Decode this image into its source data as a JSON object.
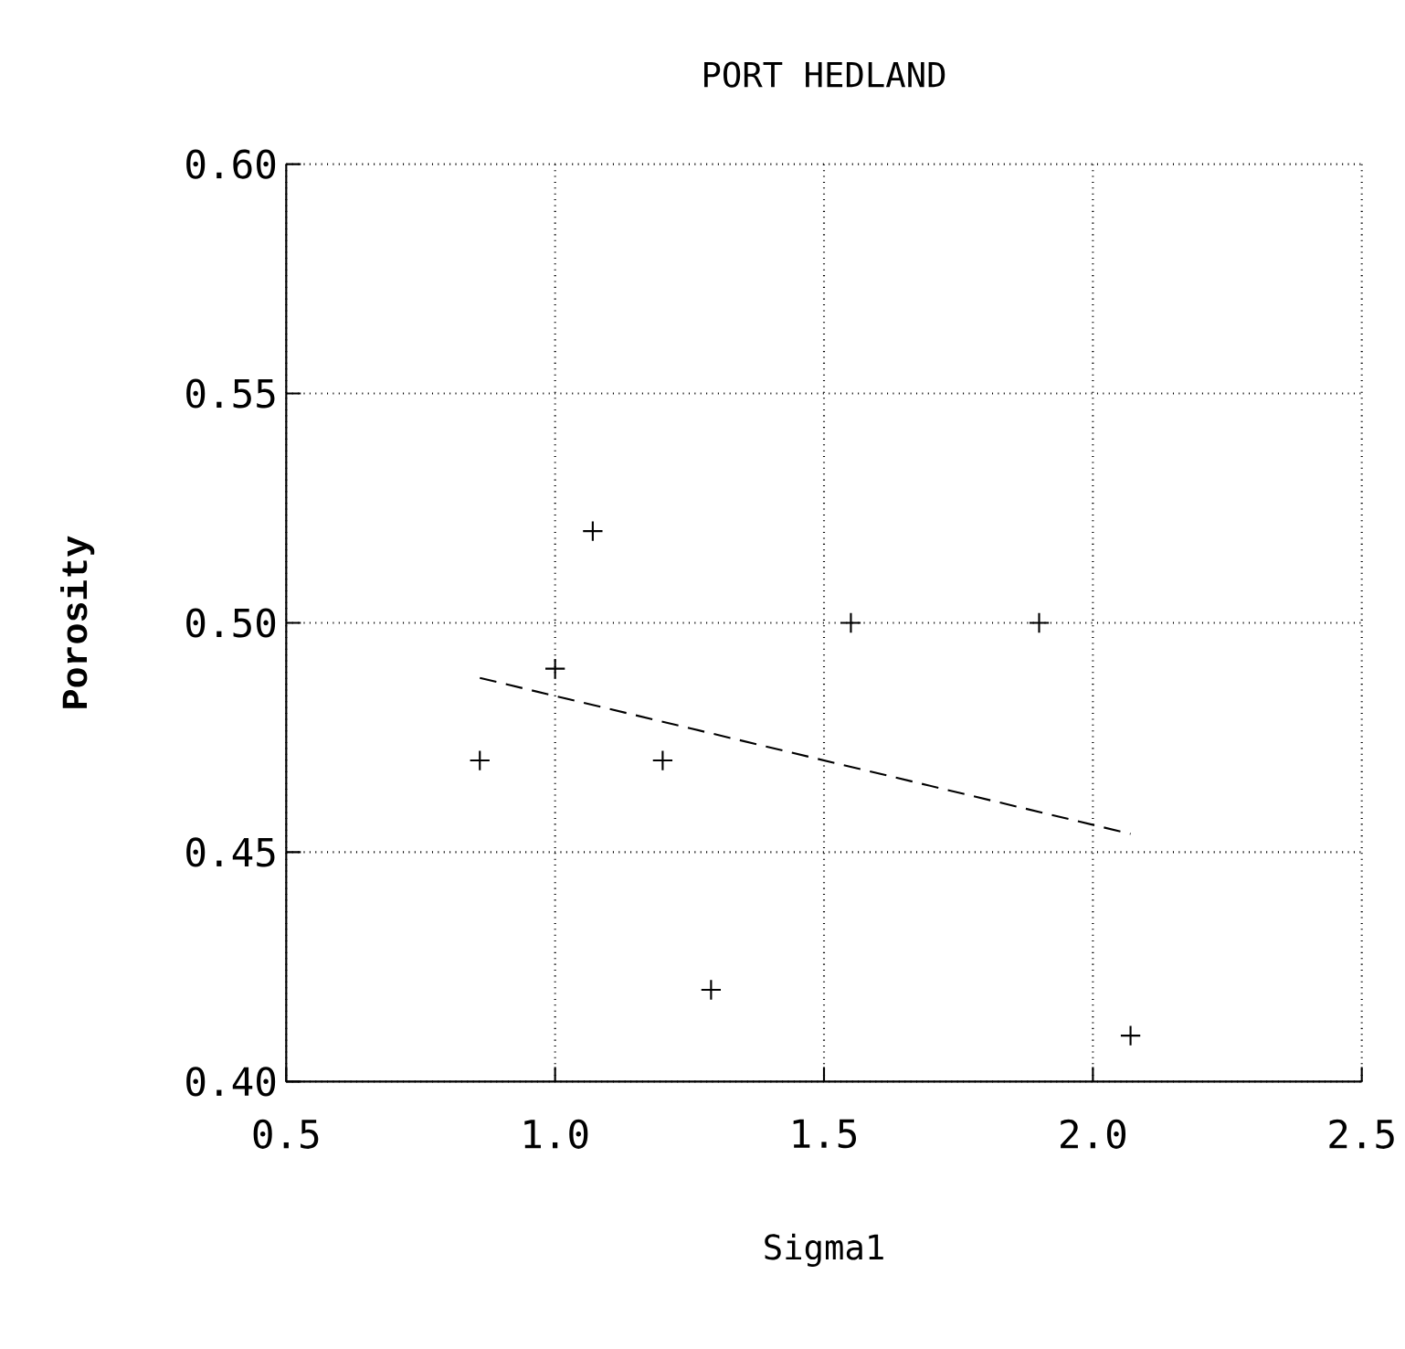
{
  "chart_data": {
    "type": "scatter",
    "title": "PORT HEDLAND",
    "xlabel": "Sigma1",
    "ylabel": "Porosity",
    "series": [
      {
        "color": "#000000",
        "marker": "cross",
        "x": [
          0.86,
          1.0,
          1.07,
          1.2,
          1.29,
          1.55,
          1.9,
          2.07
        ],
        "values": [
          0.47,
          0.49,
          0.52,
          0.47,
          0.42,
          0.5,
          0.5,
          0.41
        ]
      },
      {
        "type": "line",
        "color": "#000000",
        "line_style": "dashed",
        "marker": "none",
        "x": [
          0.86,
          2.07
        ],
        "values": [
          0.488,
          0.454
        ]
      }
    ],
    "xlim": [
      0.5,
      2.5
    ],
    "ylim": [
      0.4,
      0.6
    ],
    "xticks": [
      0.5,
      {
        "value": 1,
        "label": "1.0"
      },
      1.5,
      {
        "value": 2,
        "label": "2.0"
      },
      2.5
    ],
    "yticks": [
      {
        "value": 0.4,
        "label": "0.40"
      },
      0.45,
      {
        "value": 0.5,
        "label": "0.50"
      },
      0.55,
      {
        "value": 0.6,
        "label": "0.60"
      }
    ],
    "grid": true
  }
}
